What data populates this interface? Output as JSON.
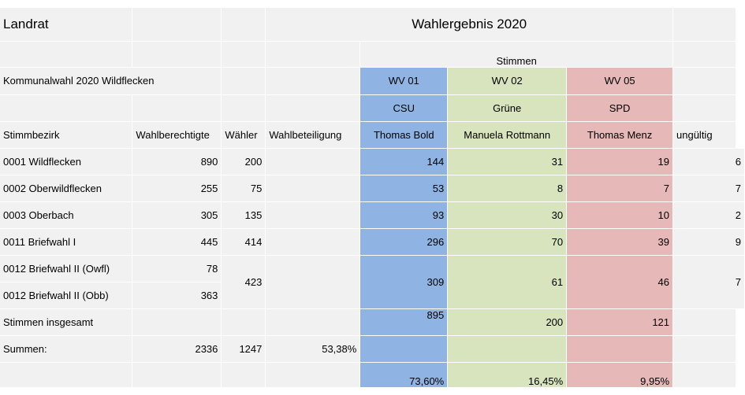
{
  "header": {
    "office": "Landrat",
    "title": "Wahlergebnis 2020",
    "votes_label": "Stimmen"
  },
  "election": {
    "name": "Kommunalwahl  2020 Wildflecken"
  },
  "candidates": [
    {
      "list": "WV 01",
      "party": "CSU",
      "name": "Thomas Bold",
      "color": "#8fb4e3"
    },
    {
      "list": "WV 02",
      "party": "Grüne",
      "name": "Manuela Rottmann",
      "color": "#d7e4bd"
    },
    {
      "list": "WV 05",
      "party": "SPD",
      "name": "Thomas Menz",
      "color": "#e6b9b8"
    }
  ],
  "columns": {
    "district": "Stimmbezirk",
    "eligible": "Wahlberechtigte",
    "voters": "Wähler",
    "turnout": "Wahlbeteiligung",
    "invalid": "ungültig"
  },
  "rows": [
    {
      "district": "0001  Wildflecken",
      "eligible": "890",
      "voters": "200",
      "v1": "144",
      "v2": "31",
      "v3": "19",
      "invalid": "6"
    },
    {
      "district": "0002  Oberwildflecken",
      "eligible": "255",
      "voters": "75",
      "v1": "53",
      "v2": "8",
      "v3": "7",
      "invalid": "7"
    },
    {
      "district": "0003  Oberbach",
      "eligible": "305",
      "voters": "135",
      "v1": "93",
      "v2": "30",
      "v3": "10",
      "invalid": "2"
    },
    {
      "district": "0011  Briefwahl I",
      "eligible": "445",
      "voters": "414",
      "v1": "296",
      "v2": "70",
      "v3": "39",
      "invalid": "9"
    }
  ],
  "briefwahl2": {
    "district_a": "0012  Briefwahl II (Owfl)",
    "eligible_a": "78",
    "district_b": "0012  Briefwahl II (Obb)",
    "eligible_b": "363",
    "voters": "423",
    "v1": "309",
    "v2": "61",
    "v3": "46",
    "invalid": "7"
  },
  "totals": {
    "votes_label": "Stimmen insgesamt",
    "v1": "895",
    "v2": "200",
    "v3": "121",
    "sum_label": "Summen:",
    "eligible": "2336",
    "voters": "1247",
    "turnout": "53,38%"
  },
  "percentages": {
    "v1": "73,60%",
    "v2": "16,45%",
    "v3": "9,95%"
  }
}
